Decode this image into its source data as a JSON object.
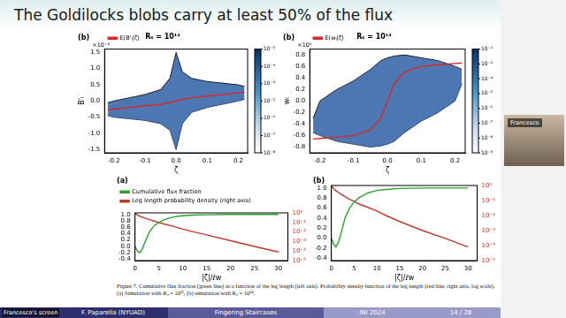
{
  "slide": {
    "title": "The Goldilocks blobs carry at least 50% of the flux",
    "caption": "Figure 7. Cumulative flux fraction (green line) as a function of the leg length (left axis). Probability density function of the leg length (red line, right axis, log scale). (a) Simulation with Rₛ = 10¹², (b) simulation with Rₛ = 10¹⁴.",
    "footer": {
      "author": "F. Paparella (NYUAD)",
      "talk": "Fingering Staircases",
      "event": "INI 2024",
      "page": "14 / 28"
    },
    "video": {
      "speaker": "Francesco",
      "screen": "Francesco's screen"
    }
  },
  "chart_data": [
    {
      "type": "line",
      "panel": "(b)",
      "title": "Rₛ = 10¹⁴",
      "x_label": "ζ",
      "y_label": "B'ₗ",
      "y_scale_note": "×10⁻²",
      "x": [
        -0.22,
        -0.2,
        -0.15,
        -0.1,
        -0.05,
        -0.02,
        0,
        0.02,
        0.05,
        0.1,
        0.15,
        0.2,
        0.22
      ],
      "series": [
        {
          "color": "#000000",
          "values": [
            -0.05,
            0,
            0.1,
            0.2,
            0.35,
            0.7,
            1.5,
            0.9,
            0.7,
            0.6,
            0.55,
            0.5,
            0.45
          ]
        },
        {
          "color": "#000000",
          "values": [
            -0.45,
            -0.5,
            -0.55,
            -0.6,
            -0.7,
            -0.9,
            -1.5,
            -0.7,
            -0.35,
            -0.2,
            -0.1,
            0,
            0.05
          ]
        },
        {
          "name": "E(B'ₗ|ζ)",
          "color": "#d62728",
          "values": [
            -0.27,
            -0.25,
            -0.2,
            -0.15,
            -0.1,
            -0.05,
            0,
            0.05,
            0.1,
            0.15,
            0.2,
            0.25,
            0.27
          ]
        }
      ],
      "xlim": [
        -0.23,
        0.23
      ],
      "xticks": [
        -0.2,
        -0.1,
        {
          "value": 0,
          "label": "0.0"
        },
        0.1,
        0.2
      ],
      "ylim": [
        -1.6,
        1.6
      ],
      "yticks": [
        -1.5,
        {
          "value": -1,
          "label": "-1.0"
        },
        -0.5,
        {
          "value": 0,
          "label": "0.0"
        },
        0.5,
        {
          "value": 1,
          "label": "1.0"
        },
        1.5
      ],
      "grid": false,
      "legend": "upper left",
      "colorbar": {
        "lim": [
          1e-08,
          0.01
        ],
        "ticks": [
          {
            "value": 0.01,
            "label": "10⁻²"
          },
          {
            "value": 0.001,
            "label": "10⁻³"
          },
          {
            "value": 0.0001,
            "label": "10⁻⁴"
          },
          {
            "value": 1e-05,
            "label": "10⁻⁵"
          },
          {
            "value": 1e-06,
            "label": "10⁻⁶"
          },
          {
            "value": 1e-07,
            "label": "10⁻⁷"
          },
          {
            "value": 1e-08,
            "label": "10⁻⁸"
          }
        ]
      }
    },
    {
      "type": "line",
      "panel": "(b)",
      "title": "Rₛ = 10¹⁴",
      "x_label": "ζ",
      "y_label": "wₗ",
      "y_scale_note": "×10⁵",
      "x": [
        -0.22,
        -0.2,
        -0.15,
        -0.1,
        -0.05,
        -0.02,
        0,
        0.02,
        0.05,
        0.1,
        0.15,
        0.2,
        0.22
      ],
      "series": [
        {
          "color": "#000000",
          "values": [
            -0.3,
            0,
            0.2,
            0.35,
            0.55,
            0.7,
            0.75,
            0.78,
            0.8,
            0.75,
            0.7,
            0.6,
            0.55
          ]
        },
        {
          "color": "#000000",
          "values": [
            -0.55,
            -0.6,
            -0.7,
            -0.75,
            -0.8,
            -0.78,
            -0.75,
            -0.7,
            -0.55,
            -0.35,
            -0.2,
            0,
            0.3
          ]
        },
        {
          "name": "E(wₗ|ζ)",
          "color": "#d62728",
          "values": [
            -0.66,
            -0.65,
            -0.63,
            -0.6,
            -0.5,
            -0.3,
            0,
            0.3,
            0.5,
            0.6,
            0.63,
            0.65,
            0.66
          ]
        }
      ],
      "xlim": [
        -0.23,
        0.23
      ],
      "xticks": [
        -0.2,
        -0.1,
        {
          "value": 0,
          "label": "0.0"
        },
        0.1,
        0.2
      ],
      "ylim": [
        -0.9,
        0.9
      ],
      "yticks": [
        -0.8,
        -0.6,
        -0.4,
        -0.2,
        {
          "value": 0,
          "label": "0.0"
        },
        0.2,
        0.4,
        0.6,
        0.8
      ],
      "grid": false,
      "legend": "upper left",
      "colorbar": {
        "lim": [
          1e-09,
          0.01
        ],
        "ticks": [
          {
            "value": 0.01,
            "label": "10⁻²"
          },
          {
            "value": 0.001,
            "label": "10⁻³"
          },
          {
            "value": 0.0001,
            "label": "10⁻⁴"
          },
          {
            "value": 1e-05,
            "label": "10⁻⁵"
          },
          {
            "value": 1e-06,
            "label": "10⁻⁶"
          },
          {
            "value": 1e-07,
            "label": "10⁻⁷"
          },
          {
            "value": 1e-08,
            "label": "10⁻⁸"
          },
          {
            "value": 1e-09,
            "label": "10⁻⁹"
          }
        ]
      }
    },
    {
      "type": "line",
      "panel": "(a)",
      "x_label": "|ζ|/ℓw",
      "x": [
        0,
        0.5,
        1,
        1.5,
        2,
        3,
        4,
        5,
        6,
        8,
        10,
        12,
        15,
        20,
        25,
        30
      ],
      "series": [
        {
          "name": "Cumulative flux fraction",
          "color": "#2ca02c",
          "values": [
            0,
            -0.15,
            -0.2,
            -0.1,
            0.1,
            0.45,
            0.65,
            0.75,
            0.83,
            0.92,
            0.96,
            0.98,
            0.99,
            1,
            1,
            1
          ]
        },
        {
          "name": "Leg length probability density (right axis)",
          "color": "#c0392b",
          "axis": "y2",
          "values": [
            1,
            0.6,
            0.45,
            0.35,
            0.3,
            0.2,
            0.14,
            0.1,
            0.07,
            0.04,
            0.02,
            0.011,
            0.005,
            0.0012,
            0.0003,
            8e-05
          ]
        }
      ],
      "xlim": [
        0,
        32
      ],
      "xticks": [
        0,
        5,
        10,
        15,
        20,
        25,
        30
      ],
      "ylim": [
        -0.45,
        1.05
      ],
      "yticks": [
        -0.4,
        -0.2,
        {
          "value": 0,
          "label": "0.0"
        },
        0.2,
        0.4,
        0.6,
        0.8,
        {
          "value": 1,
          "label": "1.0"
        }
      ],
      "y2lim": [
        1e-05,
        1
      ],
      "y2ticks": [
        {
          "value": 1,
          "label": "10⁰"
        },
        {
          "value": 0.1,
          "label": "10⁻¹"
        },
        {
          "value": 0.01,
          "label": "10⁻²"
        },
        {
          "value": 0.001,
          "label": "10⁻³"
        },
        {
          "value": 0.0001,
          "label": "10⁻⁴"
        },
        {
          "value": 1e-05,
          "label": "10⁻⁵"
        }
      ],
      "log": "y2",
      "grid": false,
      "legend": "top"
    },
    {
      "type": "line",
      "panel": "(b)",
      "x_label": "|ζ|/ℓw",
      "x": [
        0,
        0.5,
        1,
        1.5,
        2,
        3,
        4,
        5,
        6,
        8,
        10,
        12,
        15,
        20,
        25,
        30
      ],
      "series": [
        {
          "color": "#2ca02c",
          "values": [
            0,
            -0.12,
            -0.18,
            -0.1,
            0.05,
            0.4,
            0.6,
            0.72,
            0.8,
            0.9,
            0.95,
            0.97,
            0.99,
            1,
            1,
            1
          ]
        },
        {
          "color": "#c0392b",
          "axis": "y2",
          "values": [
            1,
            0.6,
            0.45,
            0.35,
            0.28,
            0.18,
            0.12,
            0.09,
            0.06,
            0.035,
            0.02,
            0.01,
            0.004,
            0.001,
            0.0003,
            8e-05
          ]
        }
      ],
      "xlim": [
        0,
        32
      ],
      "xticks": [
        0,
        5,
        10,
        15,
        20,
        25,
        30
      ],
      "ylim": [
        -0.45,
        1.05
      ],
      "yticks": [
        -0.4,
        -0.2,
        {
          "value": 0,
          "label": "0.0"
        },
        0.2,
        0.4,
        0.6,
        0.8,
        {
          "value": 1,
          "label": "1.0"
        }
      ],
      "y2lim": [
        1e-05,
        1
      ],
      "y2ticks": [
        {
          "value": 1,
          "label": "10⁰"
        },
        {
          "value": 0.1,
          "label": "10⁻¹"
        },
        {
          "value": 0.01,
          "label": "10⁻²"
        },
        {
          "value": 0.001,
          "label": "10⁻³"
        },
        {
          "value": 0.0001,
          "label": "10⁻⁴"
        },
        {
          "value": 1e-05,
          "label": "10⁻⁵"
        }
      ],
      "log": "y2",
      "grid": false
    }
  ]
}
